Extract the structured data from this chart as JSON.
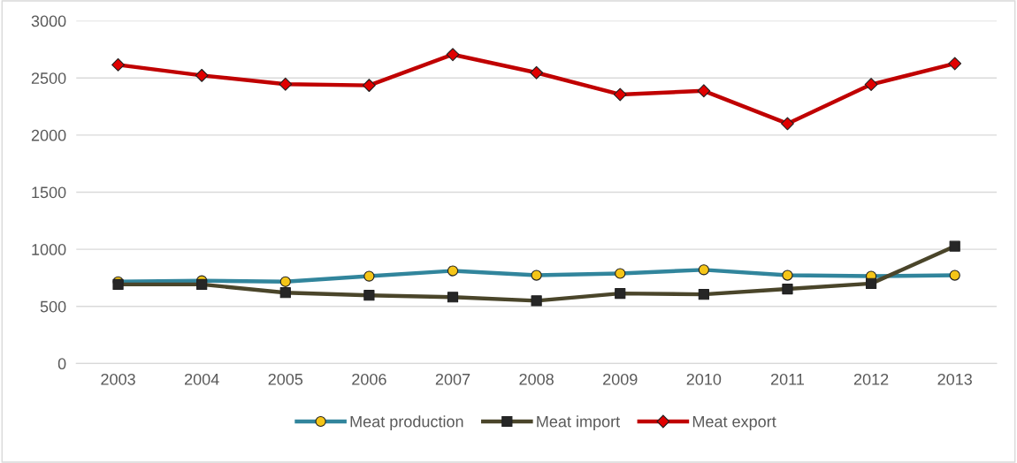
{
  "chart_data": {
    "type": "line",
    "categories": [
      "2003",
      "2004",
      "2005",
      "2006",
      "2007",
      "2008",
      "2009",
      "2010",
      "2011",
      "2012",
      "2013"
    ],
    "series": [
      {
        "name": "Meat production",
        "color": "#31859c",
        "marker": "circle",
        "colors": [
          "#f5c518",
          "#f5c518",
          "#f5c518",
          "#f5c518",
          "#f5c518",
          "#f5c518",
          "#f5c518",
          "#f5c518",
          "#f5c518",
          "#f5c518",
          "#f5c518"
        ],
        "values": [
          716,
          725,
          716,
          764,
          811,
          772,
          788,
          820,
          772,
          764,
          772
        ]
      },
      {
        "name": "Meat import",
        "color": "#4a452a",
        "marker": "square",
        "colors": [
          "#262626",
          "#262626",
          "#262626",
          "#262626",
          "#262626",
          "#262626",
          "#262626",
          "#262626",
          "#262626",
          "#262626",
          "#262626"
        ],
        "values": [
          692,
          692,
          620,
          597,
          581,
          549,
          613,
          605,
          652,
          700,
          1026
        ]
      },
      {
        "name": "Meat export",
        "color": "#c00000",
        "marker": "diamond",
        "colors": [
          "#e00000",
          "#e00000",
          "#e00000",
          "#e00000",
          "#e00000",
          "#e00000",
          "#e00000",
          "#e00000",
          "#e00000",
          "#e00000",
          "#e00000"
        ],
        "values": [
          2615,
          2522,
          2445,
          2435,
          2705,
          2546,
          2355,
          2387,
          2100,
          2443,
          2626
        ]
      }
    ],
    "ylim": [
      0,
      3000
    ],
    "yticks": [
      0,
      500,
      1000,
      1500,
      2000,
      2500,
      3000
    ],
    "grid": "y",
    "legend": "bottom",
    "line_style": "solid"
  }
}
